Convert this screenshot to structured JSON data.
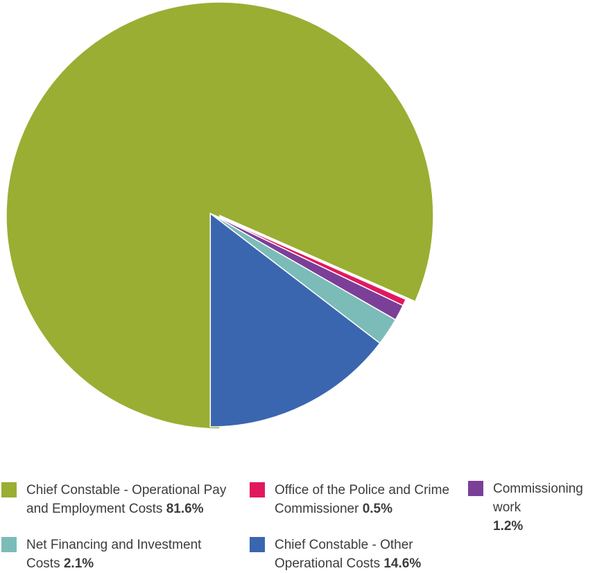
{
  "chart_data": {
    "type": "pie",
    "slices": [
      {
        "label_line1": "Chief Constable - Operational Pay",
        "label_line2": "and Employment Costs",
        "value": 81.6,
        "pct_label": "81.6%",
        "color": "#9aae33",
        "exploded": false
      },
      {
        "label_line1": "Office of the Police and Crime",
        "label_line2": "Commissioner",
        "value": 0.5,
        "pct_label": "0.5%",
        "color": "#e0195f",
        "exploded": true
      },
      {
        "label_line1": "Commissioning work",
        "label_line2": "",
        "value": 1.2,
        "pct_label": "1.2%",
        "color": "#7b3f98",
        "exploded": true
      },
      {
        "label_line1": "Net Financing and Investment",
        "label_line2": "Costs",
        "value": 2.1,
        "pct_label": "2.1%",
        "color": "#7bbcb8",
        "exploded": true
      },
      {
        "label_line1": "Chief Constable - Other",
        "label_line2": "Operational Costs",
        "value": 14.6,
        "pct_label": "14.6%",
        "color": "#3a66b0",
        "exploded": true
      }
    ]
  }
}
